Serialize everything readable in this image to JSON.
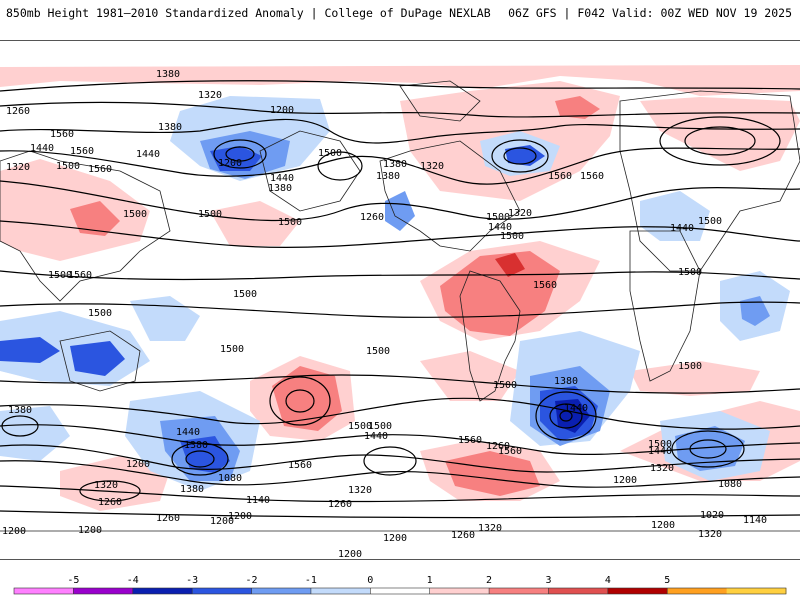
{
  "header": {
    "title": "850mb Height 1981–2010 Standardized Anomaly | College of DuPage NEXLAB",
    "run_info": "06Z GFS | F042 Valid: 00Z WED NOV 19 2025"
  },
  "colorbar": {
    "ticks": [
      "-5",
      "-4",
      "-3",
      "-2",
      "-1",
      "0",
      "1",
      "2",
      "3",
      "4",
      "5"
    ],
    "colors": [
      "#ff80ff",
      "#9900cc",
      "#0a1fb0",
      "#2b55e0",
      "#6f9cf2",
      "#c3dbfb",
      "#ffffff",
      "#ffd0d0",
      "#f78080",
      "#e05050",
      "#b00000",
      "#ffa020",
      "#ffd040"
    ]
  },
  "anomaly_colors": {
    "neg1": "#c3dbfb",
    "neg2": "#6f9cf2",
    "neg3": "#2b55e0",
    "neg4": "#0a1fb0",
    "pos1": "#ffd0d0",
    "pos2": "#f78080",
    "pos3": "#d83030"
  },
  "height_labels": [
    "1380",
    "1320",
    "1260",
    "1200",
    "1380",
    "1560",
    "1440",
    "1500",
    "1560",
    "1500",
    "1320",
    "1440",
    "1500",
    "1560",
    "1500",
    "1440",
    "1380",
    "1320",
    "1260",
    "1200",
    "1080",
    "1140",
    "1200",
    "1320",
    "1260",
    "1200",
    "1560",
    "1500",
    "1440",
    "1560",
    "1500",
    "1440",
    "1380",
    "1320",
    "1260",
    "1200",
    "1020",
    "1080",
    "1140",
    "1320",
    "1200",
    "1260",
    "1320",
    "1200",
    "1440",
    "1560",
    "1500",
    "1380",
    "1440",
    "1500",
    "1560",
    "1500",
    "1500",
    "1500",
    "1440",
    "1380",
    "1320",
    "1200",
    "1260",
    "1200",
    "1380",
    "1500",
    "1500",
    "1500",
    "1560",
    "1500",
    "1500",
    "1380",
    "1320",
    "1260",
    "1200",
    "1440",
    "1560",
    "1500",
    "1500",
    "1500",
    "1200",
    "1380",
    "1560"
  ]
}
